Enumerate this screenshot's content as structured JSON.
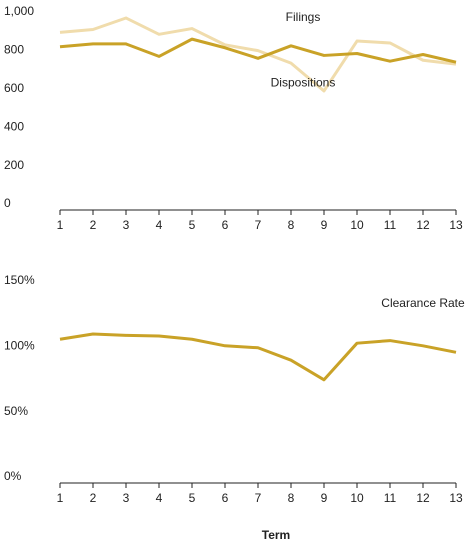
{
  "chart_data": [
    {
      "type": "line",
      "x": [
        1,
        2,
        3,
        4,
        5,
        6,
        7,
        8,
        9,
        10,
        11,
        12,
        13
      ],
      "xlim": [
        1,
        13
      ],
      "xticks": [
        1,
        2,
        3,
        4,
        5,
        6,
        7,
        8,
        9,
        10,
        11,
        12,
        13
      ],
      "ylim": [
        0,
        1000
      ],
      "yticks": [
        0,
        200,
        400,
        600,
        800,
        {
          "value": 1000,
          "label": "1,000"
        }
      ],
      "series": [
        {
          "name": "Filings",
          "color": "#f0dcac",
          "values": [
            925,
            940,
            1000,
            915,
            945,
            860,
            830,
            765,
            620,
            880,
            870,
            780,
            760
          ]
        },
        {
          "name": "Dispositions",
          "color": "#c9a227",
          "values": [
            850,
            865,
            865,
            800,
            890,
            845,
            790,
            855,
            805,
            815,
            775,
            810,
            770
          ]
        }
      ]
    },
    {
      "type": "line",
      "x": [
        1,
        2,
        3,
        4,
        5,
        6,
        7,
        8,
        9,
        10,
        11,
        12,
        13
      ],
      "xlim": [
        1,
        13
      ],
      "xticks": [
        1,
        2,
        3,
        4,
        5,
        6,
        7,
        8,
        9,
        10,
        11,
        12,
        13
      ],
      "ylim": [
        0,
        150
      ],
      "yticks": [
        {
          "value": 0,
          "label": "0%"
        },
        {
          "value": 50,
          "label": "50%"
        },
        {
          "value": 100,
          "label": "100%"
        },
        {
          "value": 150,
          "label": "150%"
        }
      ],
      "x_label": "Term",
      "series": [
        {
          "name": "Clearance Rate",
          "color": "#c9a227",
          "values": [
            110,
            114,
            113,
            112.5,
            110,
            105,
            103.5,
            94,
            79,
            107,
            109,
            105,
            100
          ]
        }
      ]
    }
  ]
}
